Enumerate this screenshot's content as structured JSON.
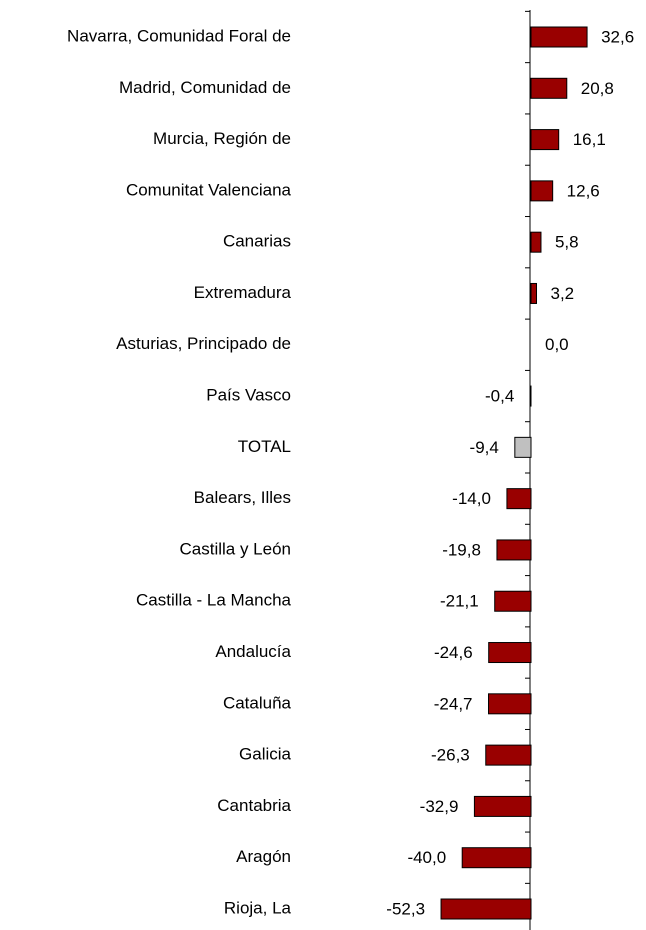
{
  "chart_data": {
    "type": "barh",
    "categories": [
      "Navarra, Comunidad Foral de",
      "Madrid, Comunidad de",
      "Murcia, Región de",
      "Comunitat Valenciana",
      "Canarias",
      "Extremadura",
      "Asturias, Principado de",
      "País Vasco",
      "TOTAL",
      "Balears, Illes",
      "Castilla y León",
      "Castilla - La Mancha",
      "Andalucía",
      "Cataluña",
      "Galicia",
      "Cantabria",
      "Aragón",
      "Rioja, La"
    ],
    "values": [
      32.6,
      20.8,
      16.1,
      12.6,
      5.8,
      3.2,
      0.0,
      -0.4,
      -9.4,
      -14.0,
      -19.8,
      -21.1,
      -24.6,
      -24.7,
      -26.3,
      -32.9,
      -40.0,
      -52.3
    ],
    "value_labels": [
      "32,6",
      "20,8",
      "16,1",
      "12,6",
      "5,8",
      "3,2",
      "0,0",
      "-0,4",
      "-9,4",
      "-14,0",
      "-19,8",
      "-21,1",
      "-24,6",
      "-24,7",
      "-26,3",
      "-32,9",
      "-40,0",
      "-52,3"
    ],
    "colors": [
      "#990000",
      "#990000",
      "#990000",
      "#990000",
      "#990000",
      "#990000",
      "#990000",
      "#990000",
      "#c0c0c0",
      "#990000",
      "#990000",
      "#990000",
      "#990000",
      "#990000",
      "#990000",
      "#990000",
      "#990000",
      "#990000"
    ],
    "xlim": [
      -60,
      40
    ]
  }
}
